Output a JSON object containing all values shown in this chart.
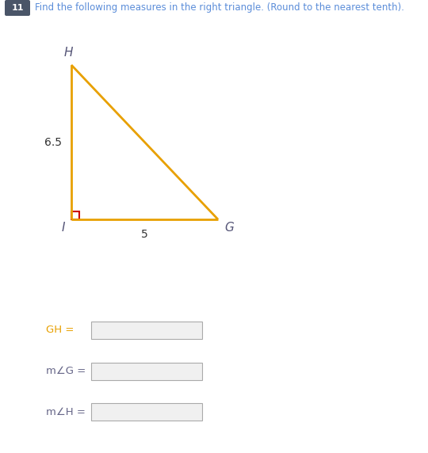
{
  "title_number": "11",
  "title_text": "Find the following measures in the right triangle. (Round to the nearest tenth).",
  "tri_color": "#E8A000",
  "tri_linewidth": 2.0,
  "right_angle_color": "#CC0000",
  "label_I": "I",
  "label_H": "H",
  "label_G": "G",
  "label_side_IH": "6.5",
  "label_side_IG": "5",
  "fields": [
    {
      "label": "GH =",
      "label_color": "#E8A000",
      "equals_color": "#555555"
    },
    {
      "label": "m∠G =",
      "label_color": "#555555",
      "equals_color": "#555555"
    },
    {
      "label": "m∠H =",
      "label_color": "#555555",
      "equals_color": "#555555"
    }
  ],
  "background_color": "#ffffff",
  "title_box_color": "#4a5568",
  "title_text_color": "#5b8dd9",
  "number_text_color": "#ffffff",
  "vertex_label_color": "#555577",
  "side_label_color": "#333333"
}
